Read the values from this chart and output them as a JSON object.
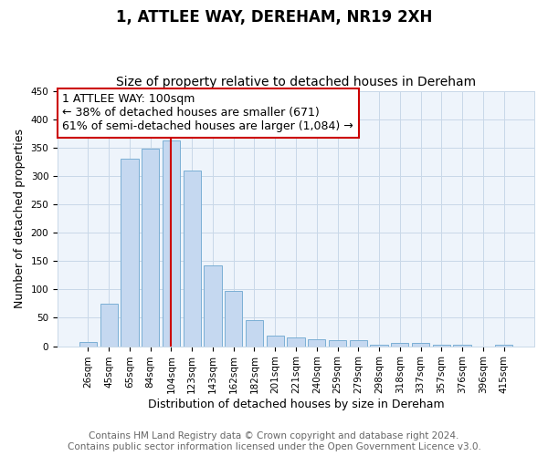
{
  "title": "1, ATTLEE WAY, DEREHAM, NR19 2XH",
  "subtitle": "Size of property relative to detached houses in Dereham",
  "xlabel": "Distribution of detached houses by size in Dereham",
  "ylabel": "Number of detached properties",
  "categories": [
    "26sqm",
    "45sqm",
    "65sqm",
    "84sqm",
    "104sqm",
    "123sqm",
    "143sqm",
    "162sqm",
    "182sqm",
    "201sqm",
    "221sqm",
    "240sqm",
    "259sqm",
    "279sqm",
    "298sqm",
    "318sqm",
    "337sqm",
    "357sqm",
    "376sqm",
    "396sqm",
    "415sqm"
  ],
  "values": [
    7,
    75,
    330,
    348,
    363,
    310,
    142,
    97,
    46,
    18,
    16,
    13,
    11,
    10,
    3,
    6,
    5,
    3,
    2,
    0,
    2
  ],
  "bar_color": "#c5d8f0",
  "bar_edge_color": "#7bafd4",
  "bar_width": 0.85,
  "vline_x": 4,
  "vline_color": "#cc0000",
  "annotation_title": "1 ATTLEE WAY: 100sqm",
  "annotation_line1": "← 38% of detached houses are smaller (671)",
  "annotation_line2": "61% of semi-detached houses are larger (1,084) →",
  "annotation_box_color": "#ffffff",
  "annotation_box_edge": "#cc0000",
  "ylim": [
    0,
    450
  ],
  "yticks": [
    0,
    50,
    100,
    150,
    200,
    250,
    300,
    350,
    400,
    450
  ],
  "grid_color": "#c8d8e8",
  "plot_bg_color": "#eef4fb",
  "fig_bg_color": "#ffffff",
  "footer_line1": "Contains HM Land Registry data © Crown copyright and database right 2024.",
  "footer_line2": "Contains public sector information licensed under the Open Government Licence v3.0.",
  "title_fontsize": 12,
  "subtitle_fontsize": 10,
  "footer_fontsize": 7.5,
  "axis_label_fontsize": 9,
  "tick_fontsize": 7.5,
  "annot_fontsize": 9
}
